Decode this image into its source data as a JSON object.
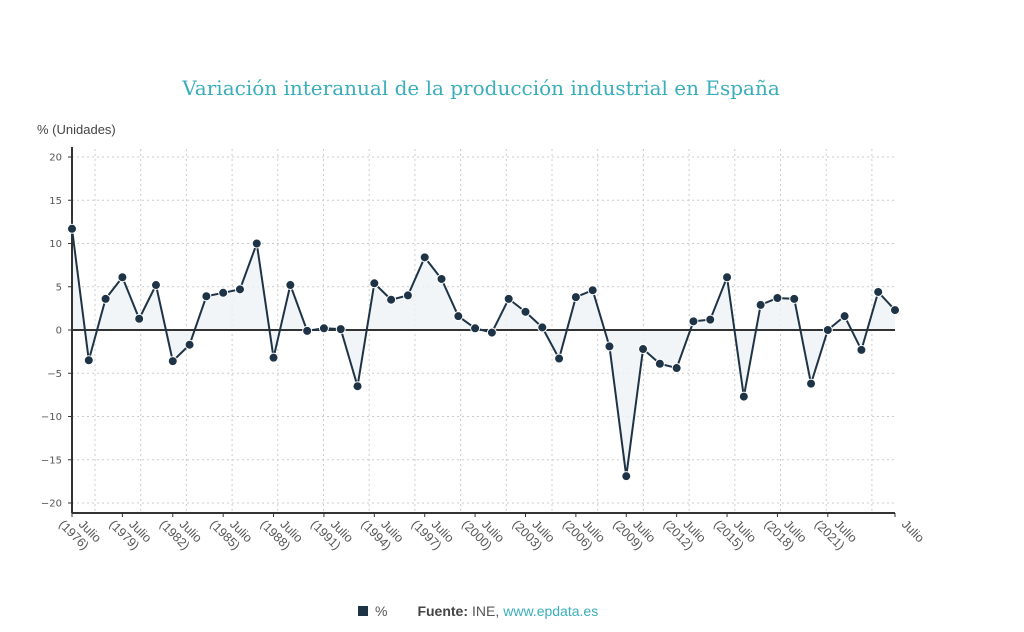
{
  "chart_data": {
    "type": "line",
    "title": "Variación interanual de la producción industrial en España",
    "ylabel": "% (Unidades)",
    "xlabel": "",
    "ylim": [
      -20,
      20
    ],
    "yticks": [
      20,
      15,
      10,
      5,
      0,
      -5,
      -10,
      -15,
      -20
    ],
    "grid": true,
    "area_fill": true,
    "x": [
      "Julio (1976)",
      "Julio (1977)",
      "Julio (1978)",
      "Julio (1979)",
      "Julio (1980)",
      "Julio (1981)",
      "Julio (1982)",
      "Julio (1983)",
      "Julio (1984)",
      "Julio (1985)",
      "Julio (1986)",
      "Julio (1987)",
      "Julio (1988)",
      "Julio (1989)",
      "Julio (1990)",
      "Julio (1991)",
      "Julio (1992)",
      "Julio (1993)",
      "Julio (1994)",
      "Julio (1995)",
      "Julio (1996)",
      "Julio (1997)",
      "Julio (1998)",
      "Julio (1999)",
      "Julio (2000)",
      "Julio (2001)",
      "Julio (2002)",
      "Julio (2003)",
      "Julio (2004)",
      "Julio (2005)",
      "Julio (2006)",
      "Julio (2007)",
      "Julio (2008)",
      "Julio (2009)",
      "Julio (2010)",
      "Julio (2011)",
      "Julio (2012)",
      "Julio (2013)",
      "Julio (2014)",
      "Julio (2015)",
      "Julio (2016)",
      "Julio (2017)",
      "Julio (2018)",
      "Julio (2019)",
      "Julio (2020)",
      "Julio (2021)",
      "Julio (2022)",
      "Julio (2023)",
      "Julio (2024)",
      "Julio"
    ],
    "xtick_labels": [
      {
        "index": 0,
        "line1": "Julio",
        "line2": "(1976)"
      },
      {
        "index": 3,
        "line1": "Julio",
        "line2": "(1979)"
      },
      {
        "index": 6,
        "line1": "Julio",
        "line2": "(1982)"
      },
      {
        "index": 9,
        "line1": "Julio",
        "line2": "(1985)"
      },
      {
        "index": 12,
        "line1": "Julio",
        "line2": "(1988)"
      },
      {
        "index": 15,
        "line1": "Julio",
        "line2": "(1991)"
      },
      {
        "index": 18,
        "line1": "Julio",
        "line2": "(1994)"
      },
      {
        "index": 21,
        "line1": "Julio",
        "line2": "(1997)"
      },
      {
        "index": 24,
        "line1": "Julio",
        "line2": "(2000)"
      },
      {
        "index": 27,
        "line1": "Julio",
        "line2": "(2003)"
      },
      {
        "index": 30,
        "line1": "Julio",
        "line2": "(2006)"
      },
      {
        "index": 33,
        "line1": "Julio",
        "line2": "(2009)"
      },
      {
        "index": 36,
        "line1": "Julio",
        "line2": "(2012)"
      },
      {
        "index": 39,
        "line1": "Julio",
        "line2": "(2015)"
      },
      {
        "index": 42,
        "line1": "Julio",
        "line2": "(2018)"
      },
      {
        "index": 45,
        "line1": "Julio",
        "line2": "(2021)"
      },
      {
        "index": 49,
        "line1": "Julio",
        "line2": ""
      }
    ],
    "series": [
      {
        "name": "%",
        "color": "#1e3346",
        "values": [
          11.7,
          -3.5,
          3.6,
          6.1,
          1.3,
          5.2,
          -3.6,
          -1.7,
          3.9,
          4.3,
          4.7,
          10.0,
          -3.2,
          5.2,
          -0.1,
          0.2,
          0.1,
          -6.5,
          5.4,
          3.5,
          4.0,
          8.4,
          5.9,
          1.6,
          0.2,
          -0.3,
          3.6,
          2.1,
          0.3,
          -3.3,
          3.8,
          4.6,
          -1.9,
          -16.9,
          -2.2,
          -3.9,
          -4.4,
          1.0,
          1.2,
          6.1,
          -7.7,
          2.9,
          3.7,
          3.6,
          -6.2,
          0.0,
          1.6,
          -2.3,
          4.4,
          2.3
        ]
      }
    ],
    "legend": {
      "position": "bottom",
      "entries": [
        "%"
      ]
    }
  },
  "footer": {
    "legend_label": "%",
    "source_label": "Fuente:",
    "source_text": "INE,",
    "source_link": "www.epdata.es"
  },
  "colors": {
    "title": "#3aaebb",
    "series": "#1e3346",
    "fill": "#eef2f6",
    "grid": "#cccccc",
    "axis": "#333333"
  }
}
